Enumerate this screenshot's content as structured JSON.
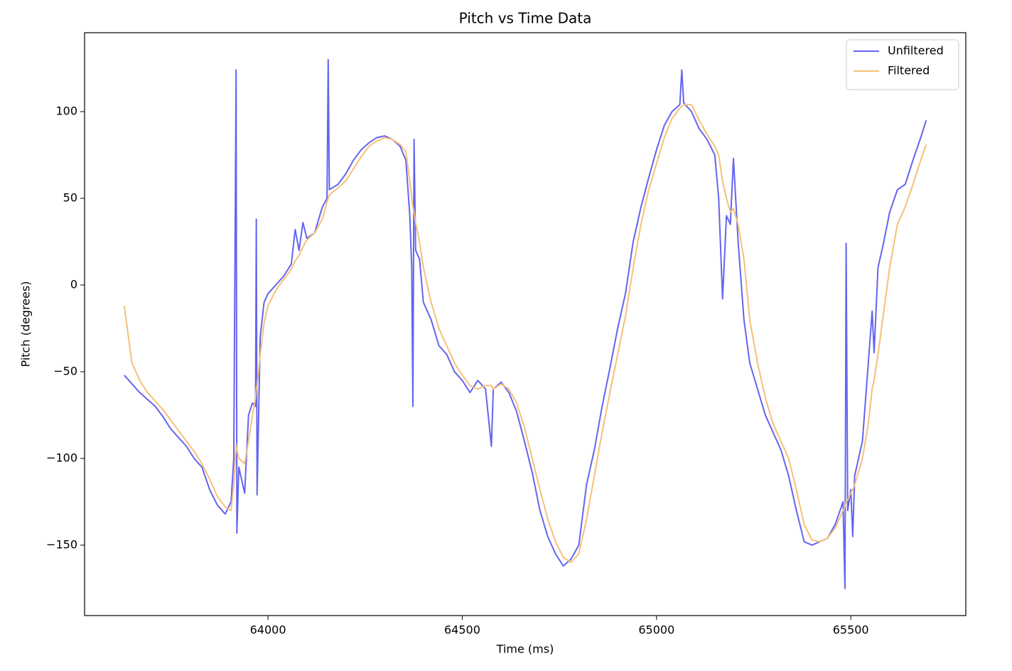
{
  "chart_data": {
    "type": "line",
    "title": "Pitch vs Time Data",
    "x_label": "Time (ms)",
    "y_label": "Pitch (degrees)",
    "x": [
      63630,
      63650,
      63670,
      63690,
      63710,
      63730,
      63750,
      63770,
      63790,
      63810,
      63830,
      63850,
      63870,
      63890,
      63905,
      63912,
      63918,
      63920,
      63925,
      63940,
      63950,
      63960,
      63968,
      63970,
      63972,
      63980,
      63990,
      64000,
      64020,
      64040,
      64060,
      64070,
      64080,
      64090,
      64100,
      64120,
      64140,
      64152,
      64155,
      64158,
      64180,
      64200,
      64220,
      64240,
      64260,
      64280,
      64300,
      64320,
      64340,
      64355,
      64365,
      64370,
      64373,
      64376,
      64380,
      64390,
      64400,
      64420,
      64440,
      64460,
      64480,
      64500,
      64520,
      64540,
      64560,
      64575,
      64580,
      64600,
      64620,
      64640,
      64660,
      64680,
      64700,
      64720,
      64740,
      64760,
      64780,
      64800,
      64820,
      64840,
      64860,
      64880,
      64900,
      64920,
      64940,
      64960,
      64980,
      65000,
      65020,
      65040,
      65060,
      65065,
      65070,
      65090,
      65110,
      65130,
      65150,
      65160,
      65170,
      65180,
      65190,
      65198,
      65210,
      65225,
      65240,
      65260,
      65280,
      65300,
      65320,
      65340,
      65360,
      65380,
      65400,
      65420,
      65440,
      65460,
      65480,
      65485,
      65488,
      65492,
      65500,
      65505,
      65510,
      65530,
      65545,
      65555,
      65560,
      65570,
      65585,
      65600,
      65620,
      65640,
      65660,
      65680,
      65694
    ],
    "series": [
      {
        "name": "Unfiltered",
        "color": "#6464f0",
        "values": [
          -52,
          -57,
          -62,
          -66,
          -70,
          -76,
          -83,
          -88,
          -93,
          -100,
          -105,
          -118,
          -127,
          -132,
          -125,
          -100,
          124,
          -143,
          -105,
          -120,
          -75,
          -68,
          -70,
          38,
          -121,
          -30,
          -10,
          -5,
          0,
          5,
          12,
          32,
          20,
          36,
          27,
          30,
          45,
          50,
          130,
          55,
          58,
          64,
          72,
          78,
          82,
          85,
          86,
          84,
          80,
          72,
          40,
          10,
          -70,
          84,
          20,
          15,
          -10,
          -20,
          -35,
          -40,
          -50,
          -55,
          -62,
          -55,
          -60,
          -93,
          -60,
          -56,
          -62,
          -73,
          -90,
          -108,
          -130,
          -145,
          -155,
          -162,
          -158,
          -150,
          -115,
          -95,
          -70,
          -48,
          -25,
          -5,
          25,
          45,
          62,
          78,
          92,
          100,
          104,
          124,
          105,
          100,
          90,
          84,
          75,
          50,
          -8,
          40,
          35,
          73,
          25,
          -20,
          -45,
          -60,
          -75,
          -85,
          -95,
          -110,
          -130,
          -148,
          -150,
          -148,
          -146,
          -138,
          -125,
          -175,
          24,
          -130,
          -118,
          -145,
          -110,
          -90,
          -45,
          -15,
          -39,
          10,
          25,
          42,
          55,
          58,
          72,
          85,
          95
        ]
      },
      {
        "name": "Filtered",
        "color": "#f5c07a",
        "values": [
          -12,
          -45,
          -55,
          -62,
          -67,
          -72,
          -78,
          -84,
          -90,
          -96,
          -103,
          -112,
          -122,
          -128,
          -130,
          -115,
          -92,
          -95,
          -100,
          -103,
          -90,
          -75,
          -65,
          -60,
          -58,
          -40,
          -22,
          -12,
          -3,
          3,
          9,
          14,
          17,
          22,
          26,
          30,
          38,
          48,
          50,
          52,
          56,
          60,
          67,
          74,
          80,
          83,
          85,
          84,
          81,
          77,
          60,
          50,
          45,
          42,
          36,
          25,
          10,
          -10,
          -25,
          -35,
          -45,
          -52,
          -58,
          -60,
          -58,
          -58,
          -60,
          -57,
          -60,
          -68,
          -82,
          -100,
          -118,
          -135,
          -148,
          -157,
          -160,
          -155,
          -135,
          -110,
          -85,
          -62,
          -40,
          -18,
          10,
          35,
          55,
          70,
          85,
          96,
          102,
          103,
          104,
          104,
          95,
          87,
          80,
          75,
          60,
          50,
          42,
          44,
          35,
          15,
          -20,
          -45,
          -65,
          -80,
          -90,
          -100,
          -118,
          -138,
          -147,
          -148,
          -146,
          -140,
          -130,
          -128,
          -125,
          -124,
          -120,
          -118,
          -115,
          -100,
          -80,
          -60,
          -55,
          -40,
          -15,
          10,
          35,
          45,
          58,
          72,
          81
        ]
      }
    ],
    "xlim": [
      63528,
      65796
    ],
    "ylim": [
      -190.6,
      145.5
    ],
    "xticks": [
      64000,
      64500,
      65000,
      65500
    ],
    "yticks": [
      {
        "value": -150,
        "label": "−150"
      },
      {
        "value": -100,
        "label": "−100"
      },
      {
        "value": -50,
        "label": "−50"
      },
      0,
      50,
      100
    ],
    "legend": "upper right"
  }
}
